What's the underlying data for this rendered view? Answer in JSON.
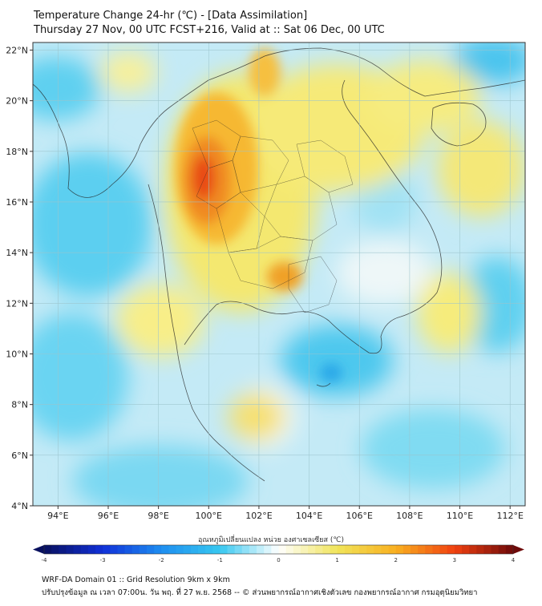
{
  "header": {
    "title_line1": "Temperature Change 24-hr (℃) - [Data Assimilation]",
    "title_line2": "Thursday 27 Nov, 00 UTC FCST+216, Valid at :: Sat 06 Dec, 00 UTC"
  },
  "map": {
    "lat_labels": [
      "22°N",
      "20°N",
      "18°N",
      "16°N",
      "14°N",
      "12°N",
      "10°N",
      "8°N",
      "6°N",
      "4°N"
    ],
    "lon_labels": [
      "94°E",
      "96°E",
      "98°E",
      "100°E",
      "102°E",
      "104°E",
      "106°E",
      "108°E",
      "110°E",
      "112°E"
    ],
    "lat_values": [
      22,
      20,
      18,
      16,
      14,
      12,
      10,
      8,
      6,
      4
    ],
    "lon_values": [
      94,
      96,
      98,
      100,
      102,
      104,
      106,
      108,
      110,
      112
    ],
    "lat_range": [
      4,
      22.3
    ],
    "lon_range": [
      93,
      112.6
    ]
  },
  "colorbar": {
    "label": "อุณหภูมิเปลี่ยนแปลง หน่วย องศาเซลเซียส (℃)",
    "ticks": [
      "-4",
      "-3",
      "-2",
      "-1",
      "0",
      "1",
      "2",
      "3",
      "4"
    ],
    "min": -4,
    "max": 4,
    "colors": {
      "neg4": "#08105e",
      "neg3": "#1030d8",
      "neg2": "#1e8ef0",
      "neg1": "#38c8f0",
      "zero": "#ffffff",
      "pos1": "#f0e45a",
      "pos2": "#f8b020",
      "pos3": "#f04010",
      "pos4": "#6e0a0a"
    }
  },
  "footer": {
    "line1": "WRF-DA Domain 01 :: Grid Resolution 9km x 9km",
    "line2": "ปรับปรุงข้อมูล ณ เวลา 07:00น. วัน พฤ. ที่ 27 พ.ย. 2568 -- © ส่วนพยากรณ์อากาศเชิงตัวเลข กองพยากรณ์อากาศ กรมอุตุนิยมวิทยา"
  }
}
